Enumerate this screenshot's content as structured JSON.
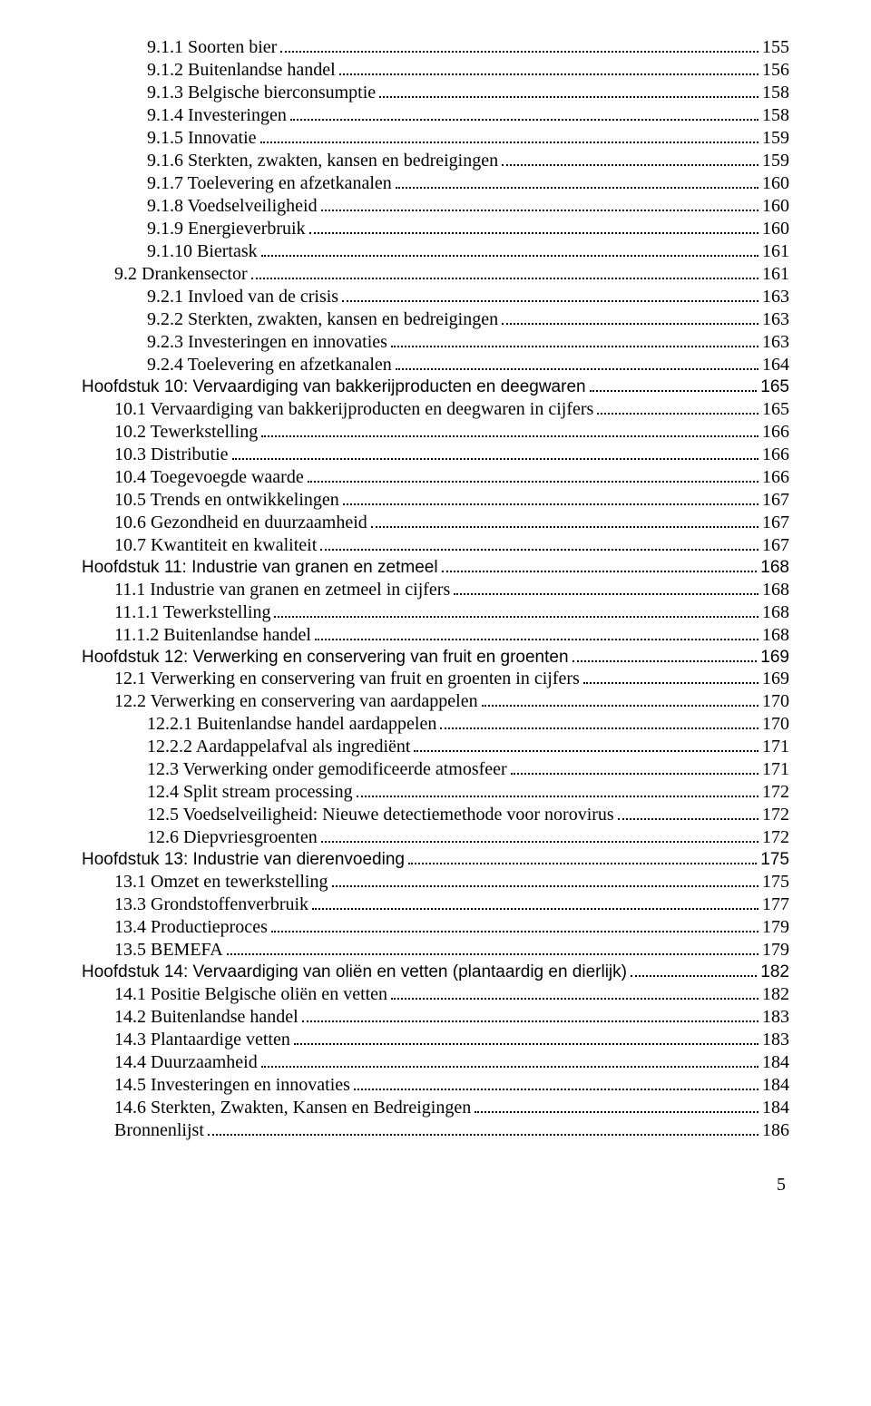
{
  "pageNumber": "5",
  "entries": [
    {
      "indent": 2,
      "kind": "serif",
      "label": "9.1.1 Soorten bier",
      "page": "155"
    },
    {
      "indent": 2,
      "kind": "serif",
      "label": "9.1.2 Buitenlandse handel",
      "page": "156"
    },
    {
      "indent": 2,
      "kind": "serif",
      "label": "9.1.3 Belgische bierconsumptie",
      "page": "158"
    },
    {
      "indent": 2,
      "kind": "serif",
      "label": "9.1.4 Investeringen",
      "page": "158"
    },
    {
      "indent": 2,
      "kind": "serif",
      "label": "9.1.5 Innovatie",
      "page": "159"
    },
    {
      "indent": 2,
      "kind": "serif",
      "label": "9.1.6 Sterkten, zwakten, kansen en bedreigingen",
      "page": "159"
    },
    {
      "indent": 2,
      "kind": "serif",
      "label": "9.1.7 Toelevering en afzetkanalen",
      "page": "160"
    },
    {
      "indent": 2,
      "kind": "serif",
      "label": "9.1.8 Voedselveiligheid",
      "page": "160"
    },
    {
      "indent": 2,
      "kind": "serif",
      "label": "9.1.9 Energieverbruik",
      "page": "160"
    },
    {
      "indent": 2,
      "kind": "serif",
      "label": "9.1.10 Biertask",
      "page": "161"
    },
    {
      "indent": 1,
      "kind": "serif",
      "label": "9.2 Drankensector",
      "page": "161"
    },
    {
      "indent": 2,
      "kind": "serif",
      "label": "9.2.1 Invloed van de crisis",
      "page": "163"
    },
    {
      "indent": 2,
      "kind": "serif",
      "label": "9.2.2 Sterkten, zwakten, kansen en bedreigingen",
      "page": "163"
    },
    {
      "indent": 2,
      "kind": "serif",
      "label": "9.2.3 Investeringen en innovaties",
      "page": "163"
    },
    {
      "indent": 2,
      "kind": "serif",
      "label": "9.2.4 Toelevering en afzetkanalen",
      "page": "164"
    },
    {
      "indent": 0,
      "kind": "chapter",
      "label": "Hoofdstuk 10: Vervaardiging van bakkerijproducten en deegwaren",
      "page": "165"
    },
    {
      "indent": 1,
      "kind": "serif",
      "label": "10.1 Vervaardiging van bakkerijproducten en deegwaren in cijfers",
      "page": "165"
    },
    {
      "indent": 1,
      "kind": "serif",
      "label": "10.2 Tewerkstelling",
      "page": "166"
    },
    {
      "indent": 1,
      "kind": "serif",
      "label": "10.3 Distributie",
      "page": "166"
    },
    {
      "indent": 1,
      "kind": "serif",
      "label": "10.4 Toegevoegde waarde",
      "page": "166"
    },
    {
      "indent": 1,
      "kind": "serif",
      "label": "10.5 Trends en ontwikkelingen",
      "page": "167"
    },
    {
      "indent": 1,
      "kind": "serif",
      "label": "10.6 Gezondheid en duurzaamheid",
      "page": "167"
    },
    {
      "indent": 1,
      "kind": "serif",
      "label": "10.7 Kwantiteit en kwaliteit",
      "page": "167"
    },
    {
      "indent": 0,
      "kind": "chapter",
      "label": "Hoofdstuk 11: Industrie van granen en zetmeel",
      "page": "168"
    },
    {
      "indent": 1,
      "kind": "serif",
      "label": "11.1 Industrie van granen en zetmeel in cijfers",
      "page": "168"
    },
    {
      "indent": 1,
      "kind": "serif",
      "label": "11.1.1 Tewerkstelling",
      "page": "168"
    },
    {
      "indent": 1,
      "kind": "serif",
      "label": "11.1.2 Buitenlandse handel",
      "page": "168"
    },
    {
      "indent": 0,
      "kind": "chapter",
      "label": "Hoofdstuk 12: Verwerking en conservering van fruit en groenten",
      "page": "169"
    },
    {
      "indent": 1,
      "kind": "serif",
      "label": "12.1 Verwerking en conservering van fruit en groenten in cijfers",
      "page": "169"
    },
    {
      "indent": 1,
      "kind": "serif",
      "label": "12.2 Verwerking en conservering van aardappelen",
      "page": "170"
    },
    {
      "indent": 2,
      "kind": "serif",
      "label": "12.2.1 Buitenlandse handel aardappelen",
      "page": "170"
    },
    {
      "indent": 2,
      "kind": "serif",
      "label": "12.2.2 Aardappelafval als ingrediënt",
      "page": "171"
    },
    {
      "indent": 2,
      "kind": "serif",
      "label": "12.3 Verwerking onder gemodificeerde atmosfeer",
      "page": "171"
    },
    {
      "indent": 2,
      "kind": "serif",
      "label": "12.4 Split stream processing",
      "page": "172"
    },
    {
      "indent": 2,
      "kind": "serif",
      "label": "12.5 Voedselveiligheid: Nieuwe detectiemethode voor norovirus",
      "page": "172"
    },
    {
      "indent": 2,
      "kind": "serif",
      "label": "12.6 Diepvriesgroenten",
      "page": "172"
    },
    {
      "indent": 0,
      "kind": "chapter",
      "label": "Hoofdstuk 13: Industrie van dierenvoeding",
      "page": "175"
    },
    {
      "indent": 1,
      "kind": "serif",
      "label": "13.1 Omzet en tewerkstelling",
      "page": "175"
    },
    {
      "indent": 1,
      "kind": "serif",
      "label": "13.3 Grondstoffenverbruik",
      "page": "177"
    },
    {
      "indent": 1,
      "kind": "serif",
      "label": "13.4 Productieproces",
      "page": "179"
    },
    {
      "indent": 1,
      "kind": "serif",
      "label": "13.5 BEMEFA",
      "page": "179"
    },
    {
      "indent": 0,
      "kind": "chapter",
      "label": "Hoofdstuk 14: Vervaardiging van oliën en vetten (plantaardig en dierlijk)",
      "page": "182"
    },
    {
      "indent": 1,
      "kind": "serif",
      "label": "14.1 Positie Belgische oliën en vetten",
      "page": "182"
    },
    {
      "indent": 1,
      "kind": "serif",
      "label": "14.2 Buitenlandse handel",
      "page": "183"
    },
    {
      "indent": 1,
      "kind": "serif",
      "label": "14.3 Plantaardige vetten",
      "page": "183"
    },
    {
      "indent": 1,
      "kind": "serif",
      "label": "14.4 Duurzaamheid",
      "page": "184"
    },
    {
      "indent": 1,
      "kind": "serif",
      "label": "14.5 Investeringen en innovaties",
      "page": "184"
    },
    {
      "indent": 1,
      "kind": "serif",
      "label": "14.6 Sterkten, Zwakten, Kansen en Bedreigingen",
      "page": "184"
    },
    {
      "indent": 1,
      "kind": "serif",
      "label": "Bronnenlijst",
      "page": "186"
    }
  ]
}
